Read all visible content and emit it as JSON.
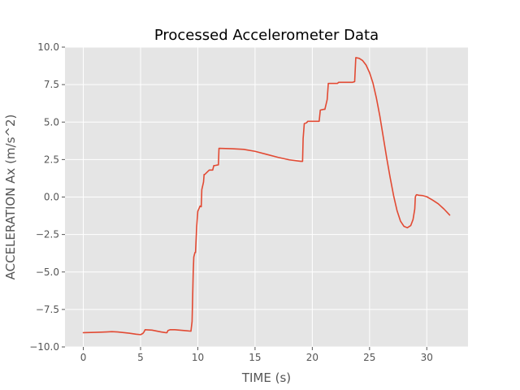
{
  "chart_data": {
    "type": "line",
    "title": "Processed Accelerometer Data",
    "xlabel": "TIME (s)",
    "ylabel": "ACCELERATION Ax (m/s^2)",
    "xlim": [
      -1.6,
      33.6
    ],
    "ylim": [
      -10.0,
      10.0
    ],
    "grid": true,
    "x_ticks": [
      0,
      5,
      10,
      15,
      20,
      25,
      30
    ],
    "x_tick_labels": [
      "0",
      "5",
      "10",
      "15",
      "20",
      "25",
      "30"
    ],
    "y_ticks": [
      -10.0,
      -7.5,
      -5.0,
      -2.5,
      0.0,
      2.5,
      5.0,
      7.5,
      10.0
    ],
    "y_tick_labels": [
      "−10.0",
      "−7.5",
      "−5.0",
      "−2.5",
      "0.0",
      "2.5",
      "5.0",
      "7.5",
      "10.0"
    ],
    "series": [
      {
        "color": "#e24a33",
        "x": [
          0,
          1,
          2,
          2.5,
          3,
          4,
          4.6,
          5.0,
          5.2,
          5.3,
          5.4,
          6,
          6.8,
          7.2,
          7.3,
          7.4,
          7.6,
          8,
          9,
          9.4,
          9.5,
          9.6,
          9.65,
          9.7,
          9.75,
          9.8,
          9.9,
          10.0,
          10.2,
          10.3,
          10.35,
          10.5,
          10.55,
          10.6,
          10.8,
          11.0,
          11.1,
          11.3,
          11.4,
          11.5,
          11.8,
          11.85,
          13,
          14,
          15,
          16,
          17,
          18,
          19,
          19.15,
          19.2,
          19.3,
          19.5,
          19.6,
          20.0,
          20.2,
          20.6,
          20.7,
          21.0,
          21.1,
          21.3,
          21.4,
          21.8,
          22.0,
          22.2,
          22.3,
          22.8,
          23.2,
          23.5,
          23.7,
          23.8,
          24.1,
          24.4,
          24.7,
          25.0,
          25.3,
          25.6,
          25.9,
          26.2,
          26.5,
          26.8,
          27.1,
          27.4,
          27.7,
          28.0,
          28.3,
          28.6,
          28.8,
          28.95,
          29.0,
          29.05,
          29.1,
          29.15,
          29.3,
          29.6,
          30,
          30.5,
          31,
          31.5,
          32
        ],
        "y": [
          -9.05,
          -9.03,
          -9.0,
          -8.98,
          -9.0,
          -9.08,
          -9.15,
          -9.18,
          -9.1,
          -9.0,
          -8.85,
          -8.88,
          -9.0,
          -9.05,
          -9.05,
          -8.9,
          -8.85,
          -8.85,
          -8.92,
          -8.95,
          -8.3,
          -5.0,
          -4.0,
          -3.85,
          -3.7,
          -3.7,
          -2.0,
          -0.95,
          -0.6,
          -0.65,
          0.5,
          1.0,
          1.5,
          1.5,
          1.65,
          1.8,
          1.8,
          1.8,
          2.1,
          2.1,
          2.15,
          3.25,
          3.22,
          3.18,
          3.05,
          2.85,
          2.65,
          2.48,
          2.38,
          2.38,
          3.9,
          4.9,
          4.95,
          5.05,
          5.05,
          5.05,
          5.05,
          5.8,
          5.85,
          5.85,
          6.5,
          7.58,
          7.58,
          7.58,
          7.58,
          7.65,
          7.65,
          7.65,
          7.65,
          7.7,
          9.3,
          9.25,
          9.1,
          8.8,
          8.3,
          7.6,
          6.6,
          5.4,
          4.0,
          2.6,
          1.3,
          0.1,
          -0.9,
          -1.6,
          -1.95,
          -2.05,
          -1.9,
          -1.5,
          -0.8,
          0.0,
          0.1,
          0.15,
          0.15,
          0.12,
          0.1,
          0.02,
          -0.2,
          -0.45,
          -0.8,
          -1.2
        ]
      }
    ]
  }
}
